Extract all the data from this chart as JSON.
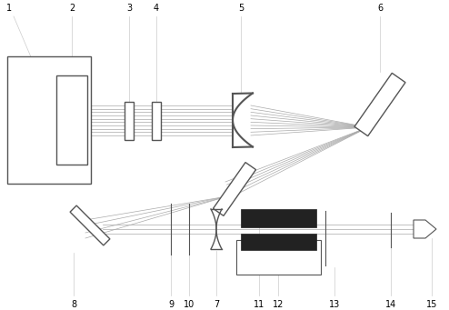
{
  "bg_color": "#ffffff",
  "gray": "#999999",
  "dgray": "#333333",
  "lgray": "#cccccc",
  "black": "#000000",
  "beam_colors": [
    "#aaaaaa",
    "#aaaaaa",
    "#aaaaaa",
    "#aaaaaa",
    "#aaaaaa",
    "#aaaaaa",
    "#aaaaaa",
    "#aaaaaa",
    "#aaaaaa",
    "#aaaaaa",
    "#aaaaaa",
    "#aaaaaa"
  ],
  "label_fs": 7
}
